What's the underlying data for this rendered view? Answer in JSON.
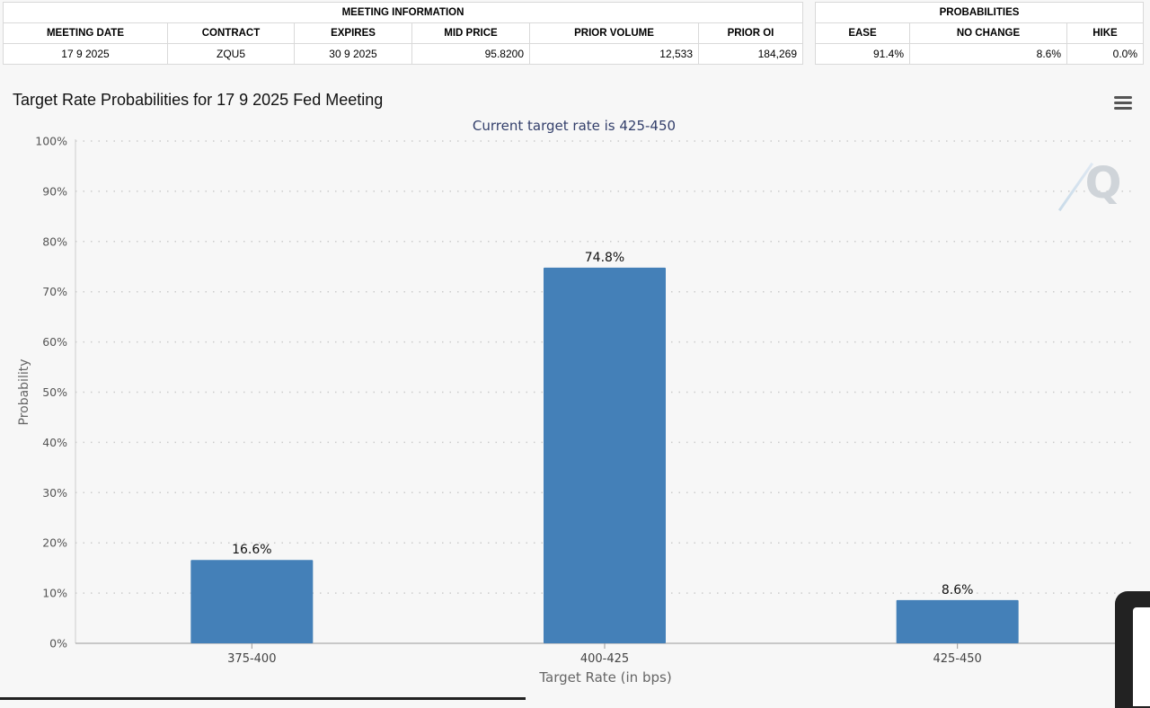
{
  "meeting_table": {
    "header": "MEETING INFORMATION",
    "columns": [
      "MEETING DATE",
      "CONTRACT",
      "EXPIRES",
      "MID PRICE",
      "PRIOR VOLUME",
      "PRIOR OI"
    ],
    "row": [
      "17 9 2025",
      "ZQU5",
      "30 9 2025",
      "95.8200",
      "12,533",
      "184,269"
    ]
  },
  "prob_table": {
    "header": "PROBABILITIES",
    "columns": [
      "EASE",
      "NO CHANGE",
      "HIKE"
    ],
    "row": [
      "91.4%",
      "8.6%",
      "0.0%"
    ]
  },
  "menu_icon": "hamburger-menu-icon",
  "watermark": "Q",
  "colors": {
    "bar": "#4480b8",
    "subtitle": "#333f6b",
    "grid": "#cccccc"
  },
  "chart_data": {
    "type": "bar",
    "title": "Target Rate Probabilities for 17 9 2025 Fed Meeting",
    "subtitle": "Current target rate is 425-450",
    "xlabel": "Target Rate (in bps)",
    "ylabel": "Probability",
    "categories": [
      "375-400",
      "400-425",
      "425-450"
    ],
    "values": [
      16.6,
      74.8,
      8.6
    ],
    "data_labels": [
      "16.6%",
      "74.8%",
      "8.6%"
    ],
    "ylim": [
      0,
      100
    ],
    "yticks": [
      "0%",
      "10%",
      "20%",
      "30%",
      "40%",
      "50%",
      "60%",
      "70%",
      "80%",
      "90%",
      "100%"
    ],
    "grid": true
  }
}
